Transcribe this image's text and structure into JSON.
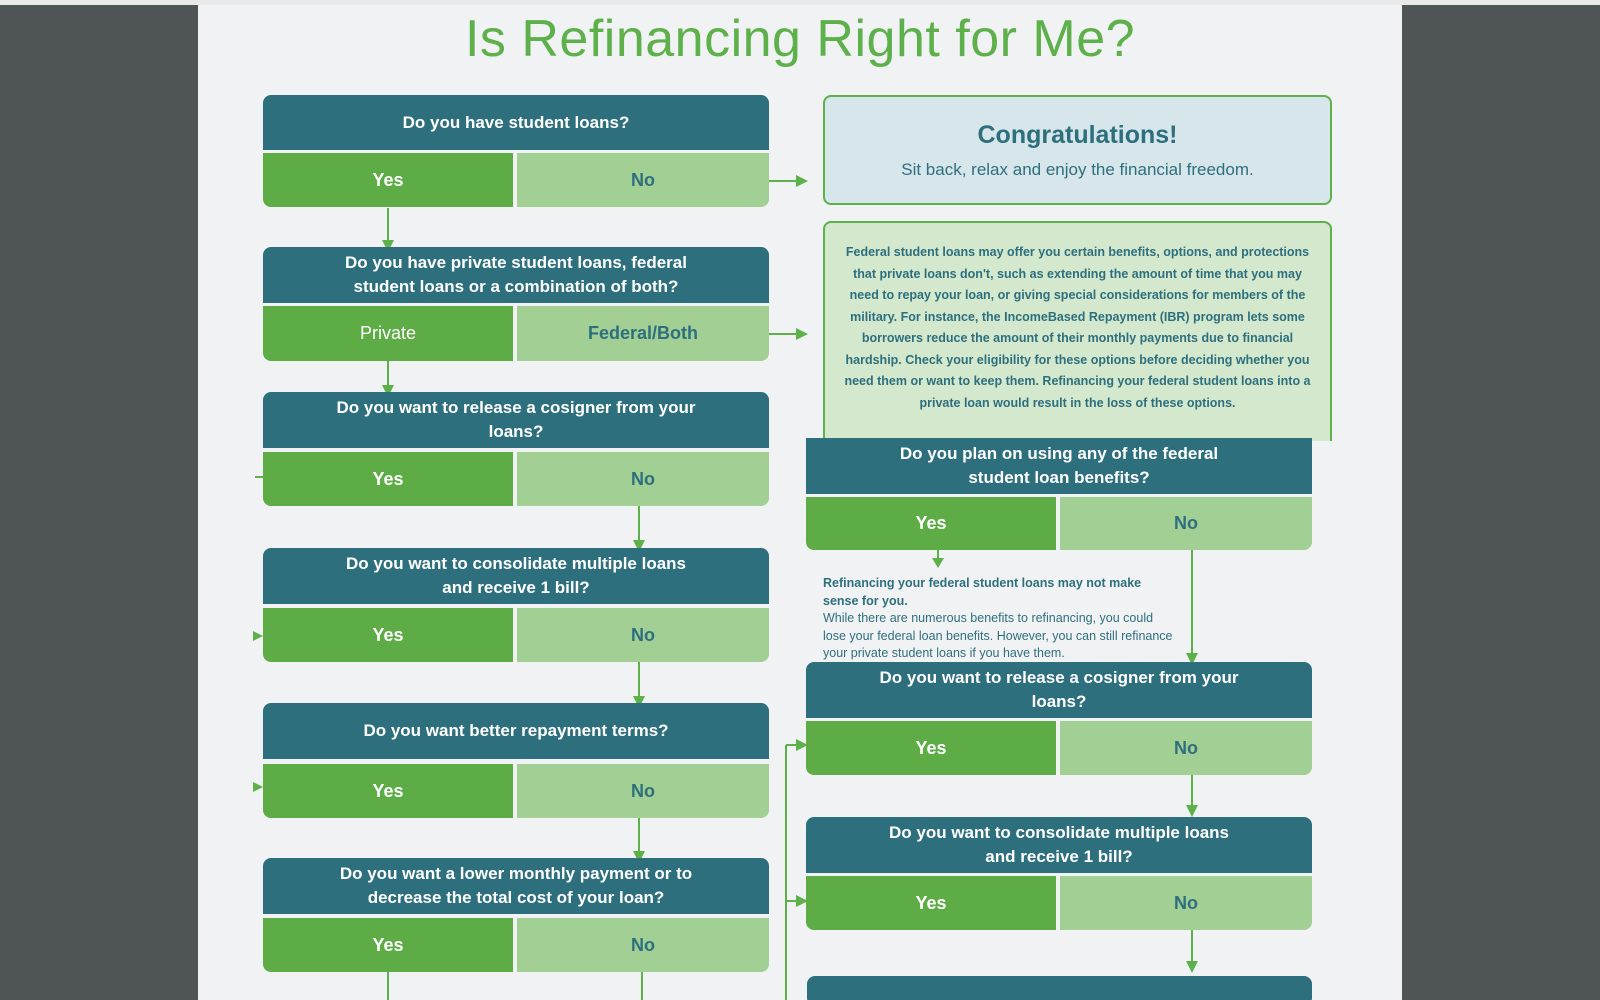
{
  "title": "Is Refinancing Right for Me?",
  "congrats": {
    "title": "Congratulations!",
    "text": "Sit back, relax and enjoy the financial freedom."
  },
  "info": {
    "text": "Federal student loans may offer you certain benefits, options, and protections that private loans don't, such as extending the amount of time that you may need to repay your loan, or giving special considerations for members of the military. For instance, the IncomeBased Repayment (IBR) program lets some borrowers reduce the amount of their monthly payments due to financial hardship. Check your eligibility for these options before deciding whether you need them or want to keep them. Refinancing your federal student loans into a private loan would result in the loss of these options."
  },
  "note": {
    "heading": "Refinancing your federal student loans may not make sense for you.",
    "body": "While there are numerous benefits to refinancing, you could lose your federal loan benefits. However, you can still refinance your private student loans if you have them."
  },
  "left": {
    "q1": {
      "question": "Do you have student loans?",
      "yes": "Yes",
      "no": "No"
    },
    "q2": {
      "question": "Do you have private student loans, federal student loans or a combination of both?",
      "yes": "Private",
      "no": "Federal/Both"
    },
    "q3": {
      "question": "Do you want to release a cosigner from your loans?",
      "yes": "Yes",
      "no": "No"
    },
    "q4": {
      "question": "Do you want to consolidate multiple loans and receive 1 bill?",
      "yes": "Yes",
      "no": "No"
    },
    "q5": {
      "question": "Do you want better repayment terms?",
      "yes": "Yes",
      "no": "No"
    },
    "q6": {
      "question": "Do you want a lower monthly payment or to decrease the total cost of your loan?",
      "yes": "Yes",
      "no": "No"
    }
  },
  "right": {
    "q1": {
      "question": "Do you plan on using any of the federal student loan benefits?",
      "yes": "Yes",
      "no": "No"
    },
    "q2": {
      "question": "Do you want to release a cosigner from your loans?",
      "yes": "Yes",
      "no": "No"
    },
    "q3": {
      "question": "Do you want to consolidate multiple loans and receive 1 bill?",
      "yes": "Yes",
      "no": "No"
    }
  },
  "colors": {
    "title_green": "#5db04a",
    "question_teal": "#2e6f7e",
    "yes_green": "#5dac45",
    "no_light_green": "#a1cf94",
    "congrats_bg": "#d6e6ea",
    "info_bg": "#d3e8cd",
    "page_bg": "#f1f2f4",
    "window_bg": "#4f5556"
  }
}
